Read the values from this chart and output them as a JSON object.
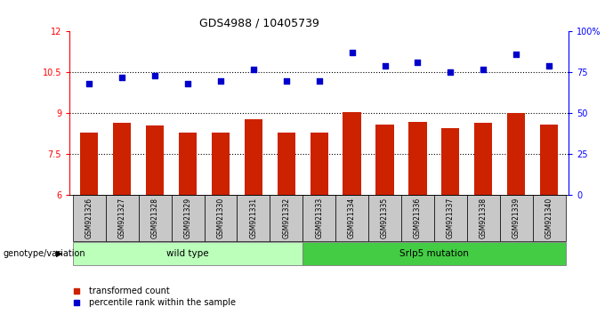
{
  "title": "GDS4988 / 10405739",
  "samples": [
    "GSM921326",
    "GSM921327",
    "GSM921328",
    "GSM921329",
    "GSM921330",
    "GSM921331",
    "GSM921332",
    "GSM921333",
    "GSM921334",
    "GSM921335",
    "GSM921336",
    "GSM921337",
    "GSM921338",
    "GSM921339",
    "GSM921340"
  ],
  "red_values": [
    8.3,
    8.65,
    8.55,
    8.3,
    8.3,
    8.8,
    8.3,
    8.3,
    9.05,
    8.6,
    8.7,
    8.45,
    8.65,
    9.0,
    8.6
  ],
  "blue_values": [
    68,
    72,
    73,
    68,
    70,
    77,
    70,
    70,
    87,
    79,
    81,
    75,
    77,
    86,
    79
  ],
  "red_ylim": [
    6,
    12
  ],
  "blue_ylim": [
    0,
    100
  ],
  "red_yticks": [
    6,
    7.5,
    9,
    10.5,
    12
  ],
  "blue_yticks": [
    0,
    25,
    50,
    75,
    100
  ],
  "dotted_lines_red": [
    7.5,
    9.0,
    10.5
  ],
  "group1_label": "wild type",
  "group2_label": "Srlp5 mutation",
  "group1_count": 7,
  "group1_color": "#bbffbb",
  "group2_color": "#44cc44",
  "annotation_label": "genotype/variation",
  "legend_red": "transformed count",
  "legend_blue": "percentile rank within the sample",
  "bar_color": "#cc2200",
  "dot_color": "#0000cc",
  "bar_width": 0.55,
  "bg_color": "#ffffff",
  "tick_label_bg": "#c8c8c8"
}
